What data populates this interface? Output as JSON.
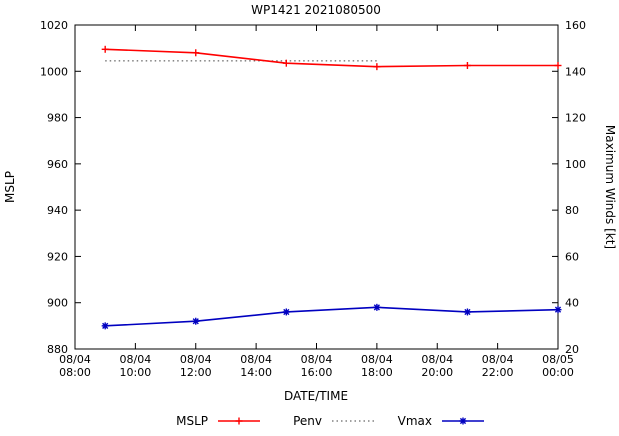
{
  "chart_data": {
    "type": "line",
    "title": "WP1421 2021080500",
    "xlabel": "DATE/TIME",
    "ylabel_left": "MSLP",
    "ylabel_right": "Maximum Winds [kt]",
    "x_range": [
      8,
      24
    ],
    "x_tick_hours": [
      8,
      10,
      12,
      14,
      16,
      18,
      20,
      22,
      24
    ],
    "x_tick_labels": [
      [
        "08/04",
        "08:00"
      ],
      [
        "08/04",
        "10:00"
      ],
      [
        "08/04",
        "12:00"
      ],
      [
        "08/04",
        "14:00"
      ],
      [
        "08/04",
        "16:00"
      ],
      [
        "08/04",
        "18:00"
      ],
      [
        "08/04",
        "20:00"
      ],
      [
        "08/04",
        "22:00"
      ],
      [
        "08/05",
        "00:00"
      ]
    ],
    "ylim_left": [
      880,
      1020
    ],
    "yticks_left": [
      880,
      900,
      920,
      940,
      960,
      980,
      1000,
      1020
    ],
    "ylim_right": [
      20,
      160
    ],
    "yticks_right": [
      20,
      40,
      60,
      80,
      100,
      120,
      140,
      160
    ],
    "series": [
      {
        "name": "Penv",
        "axis": "left",
        "color": "#404040",
        "style": "dotted",
        "marker": "none",
        "x": [
          9,
          12,
          15,
          18
        ],
        "values": [
          1004.5,
          1004.5,
          1004.5,
          1004.5
        ]
      },
      {
        "name": "MSLP",
        "axis": "left",
        "color": "#ff0000",
        "style": "solid",
        "marker": "plus",
        "x": [
          9,
          12,
          15,
          18,
          21,
          24
        ],
        "values": [
          1009.5,
          1008,
          1003.5,
          1002,
          1002.5,
          1002.5
        ]
      },
      {
        "name": "Vmax",
        "axis": "right",
        "color": "#0000c0",
        "style": "solid",
        "marker": "star",
        "x": [
          9,
          12,
          15,
          18,
          21,
          24
        ],
        "values": [
          30,
          32,
          36,
          38,
          36,
          37
        ]
      }
    ],
    "legend": [
      "MSLP",
      "Penv",
      "Vmax"
    ],
    "legend_order": [
      "MSLP",
      "Penv",
      "Vmax"
    ]
  }
}
